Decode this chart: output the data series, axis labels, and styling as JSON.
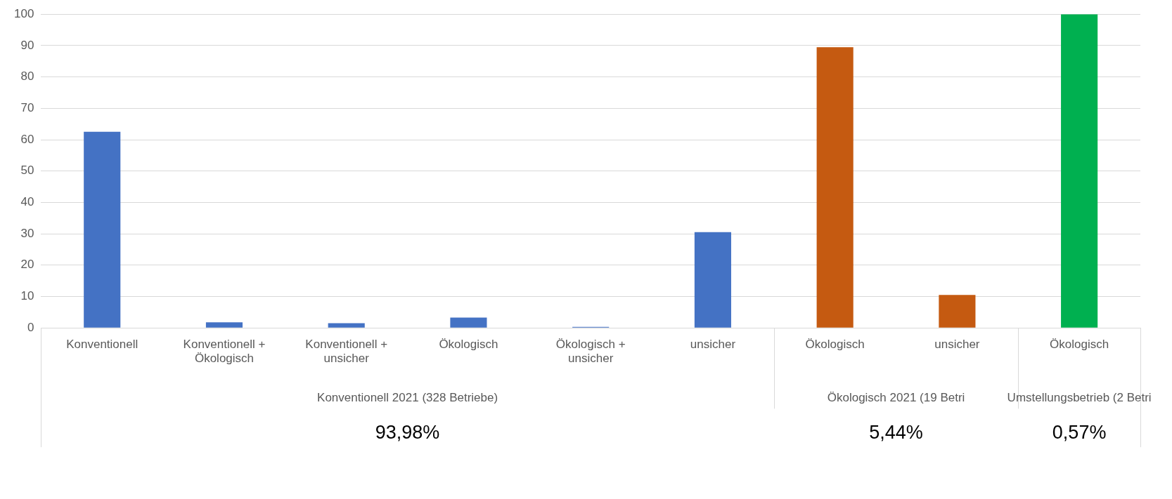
{
  "chart_data": {
    "type": "bar",
    "categories": [
      "Konventionell",
      "Konventionell + Ökologisch",
      "Konventionell + unsicher",
      "Ökologisch",
      "Ökologisch + unsicher",
      "unsicher",
      "Ökologisch",
      "unsicher",
      "Ökologisch"
    ],
    "values": [
      62.5,
      1.8,
      1.5,
      3.3,
      0.3,
      30.5,
      89.5,
      10.5,
      100
    ],
    "colors": [
      "#4472c4",
      "#4472c4",
      "#4472c4",
      "#4472c4",
      "#4472c4",
      "#4472c4",
      "#c55a11",
      "#c55a11",
      "#00b050"
    ],
    "ylim": [
      0,
      100
    ],
    "yticks": [
      0,
      10,
      20,
      30,
      40,
      50,
      60,
      70,
      80,
      90,
      100
    ],
    "grid": "y",
    "legend": false,
    "annotations": [
      "Konventionell 2021 (328 Betriebe)",
      "Ökologisch 2021 (19 Betri",
      "Umstellungsbetrieb (2 Betri",
      "93,98%",
      "5,44%",
      "0,57%"
    ]
  }
}
